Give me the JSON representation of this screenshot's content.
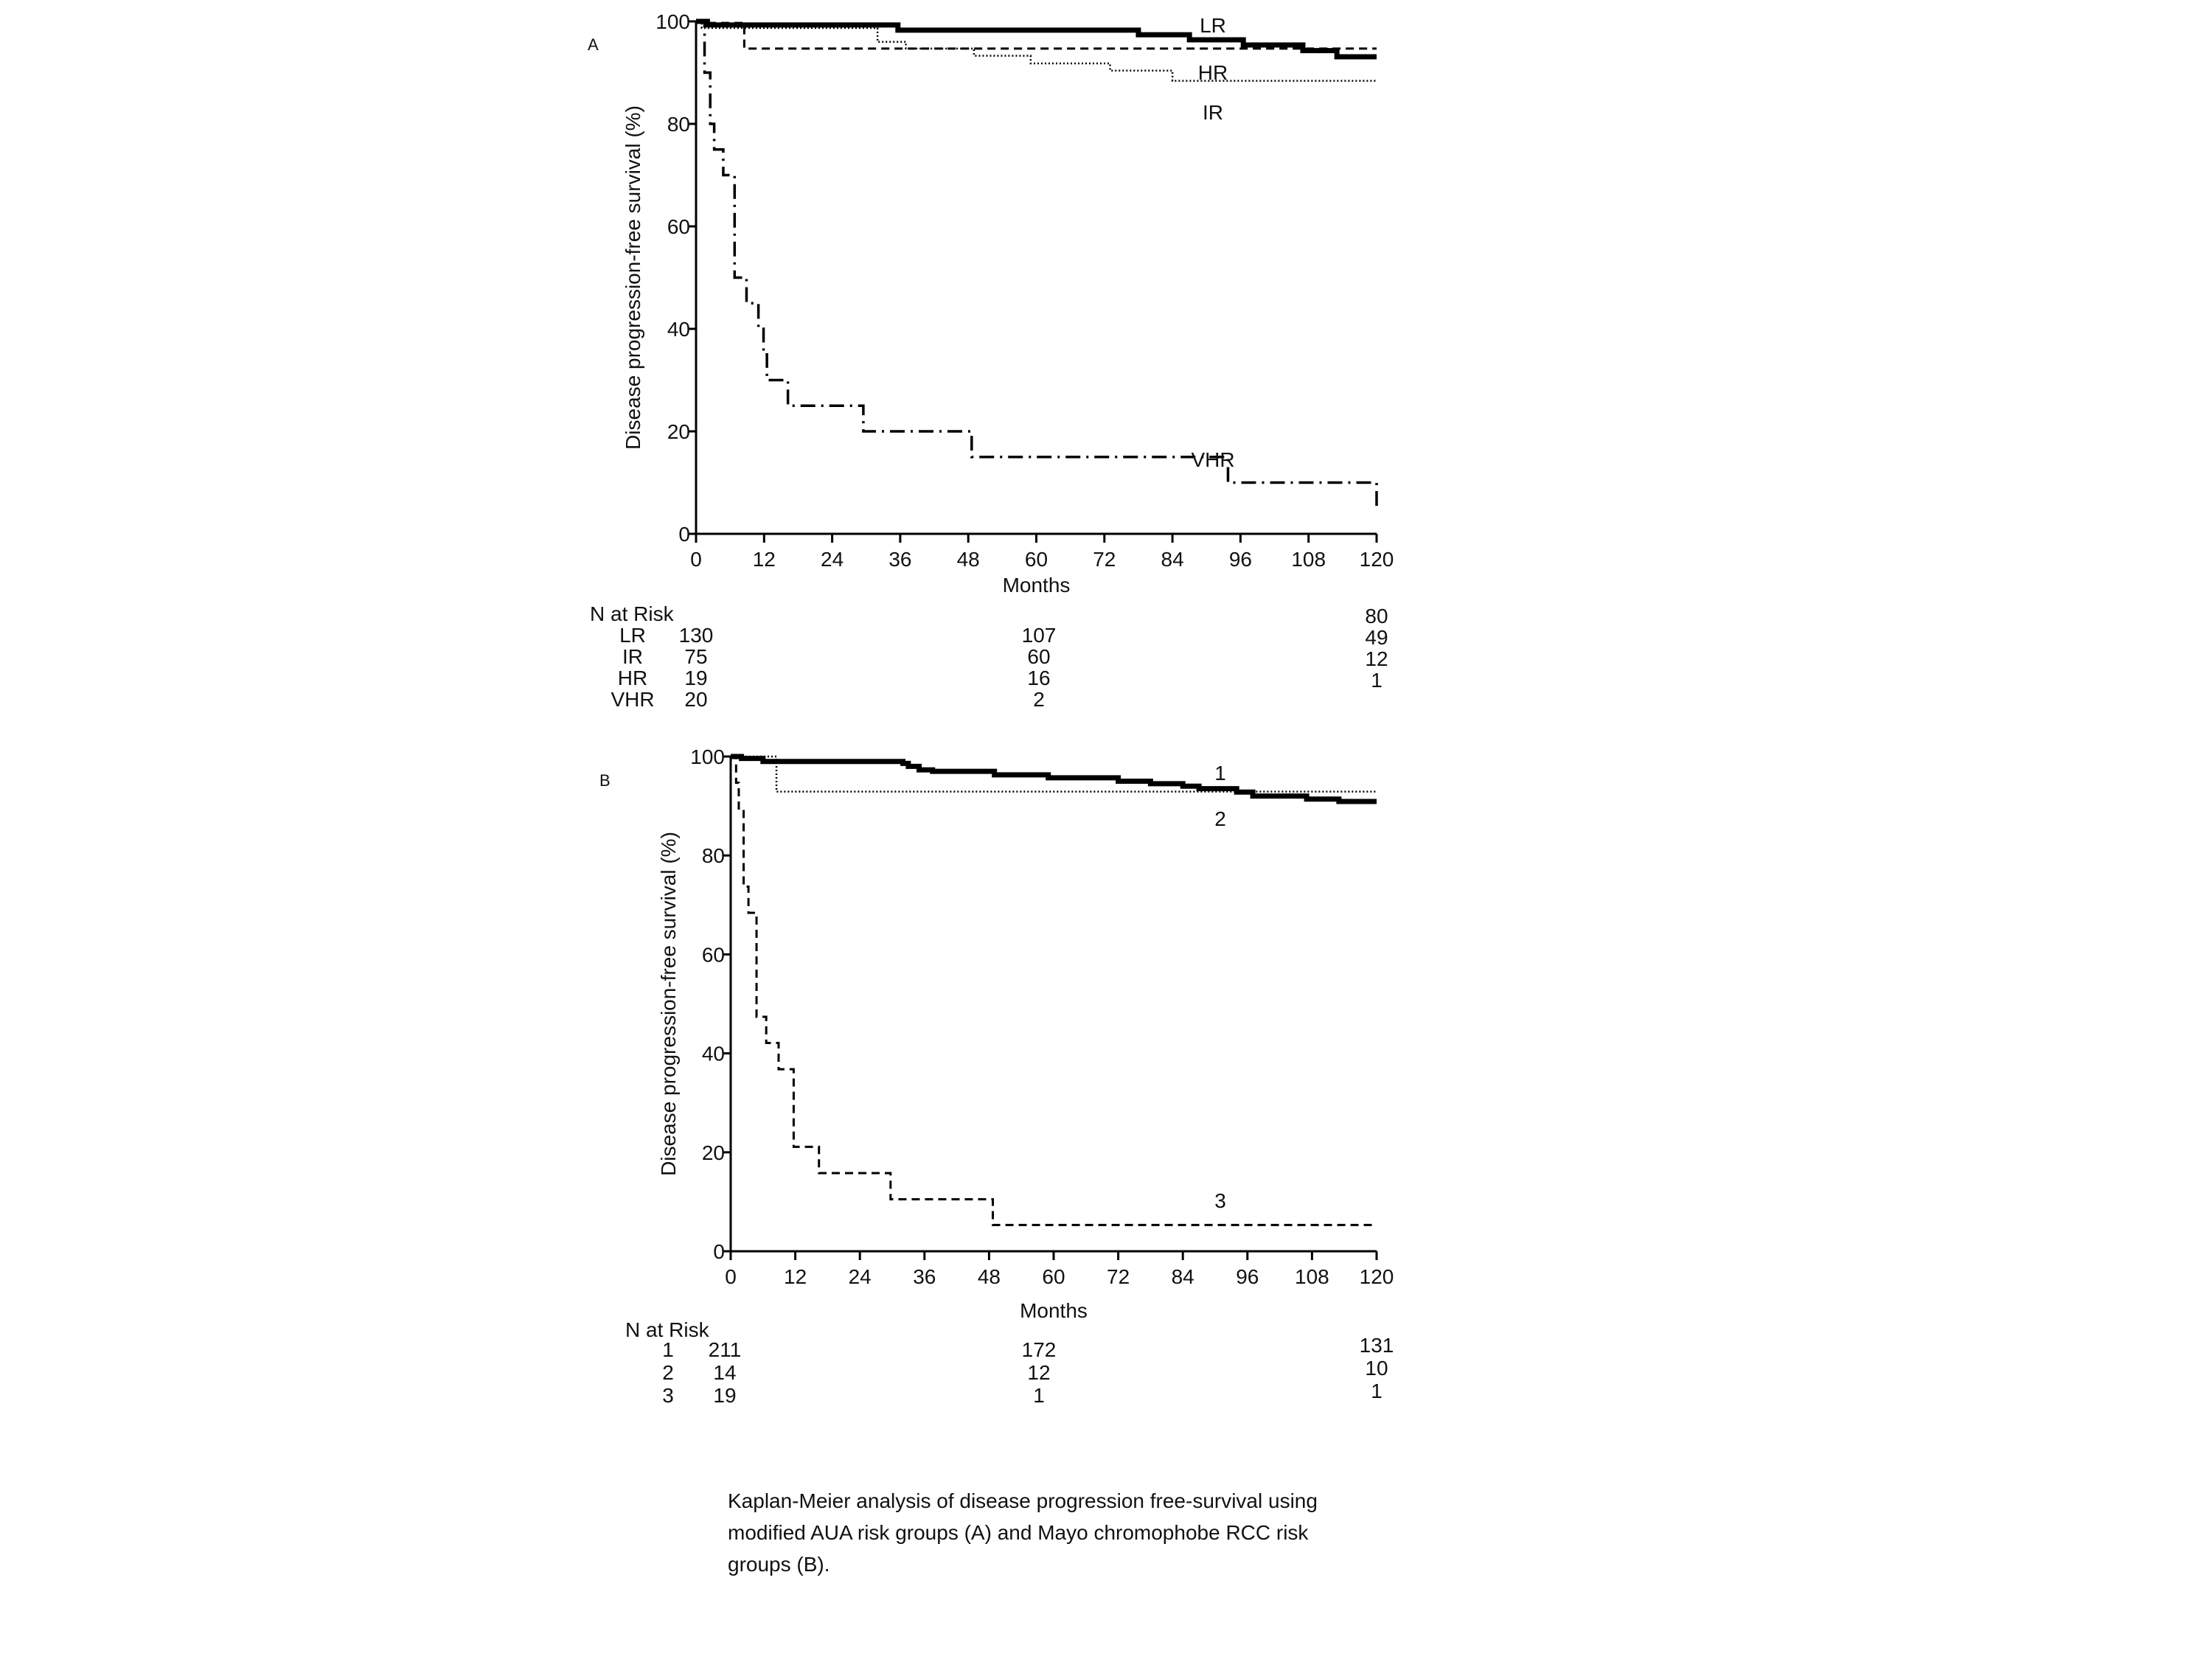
{
  "chart_data": [
    {
      "type": "line",
      "panel_label": "A",
      "title": "",
      "xlabel": "Months",
      "ylabel": "Disease progression-free survival (%)",
      "xlim": [
        0,
        120
      ],
      "ylim": [
        0,
        100
      ],
      "xticks": [
        "0",
        "12",
        "24",
        "36",
        "48",
        "60",
        "72",
        "84",
        "96",
        "108",
        "120"
      ],
      "yticks": [
        "0",
        "20",
        "40",
        "60",
        "80",
        "100"
      ],
      "grid": false,
      "series": [
        {
          "name": "LR",
          "style": "solid-thick",
          "x": [
            0,
            2,
            35.6,
            78,
            87,
            96.5,
            107,
            113,
            120
          ],
          "y": [
            100,
            99.3,
            98.3,
            97.4,
            96.4,
            95.4,
            94.3,
            93.1,
            93.1
          ]
        },
        {
          "name": "HR",
          "style": "dashed",
          "x": [
            0,
            1,
            8.5,
            120
          ],
          "y": [
            100,
            99.7,
            94.7,
            94.7
          ]
        },
        {
          "name": "IR",
          "style": "dotted",
          "x": [
            0,
            1,
            32,
            37,
            49,
            59,
            73,
            84,
            120
          ],
          "y": [
            100,
            98.7,
            96,
            94.7,
            93.3,
            91.8,
            90.4,
            88.4,
            88.4
          ]
        },
        {
          "name": "VHR",
          "style": "dash-dot",
          "x": [
            0,
            1.5,
            2.5,
            3.2,
            4.8,
            6.8,
            8.9,
            11,
            11.9,
            12.5,
            16.2,
            29.5,
            48.6,
            93.8,
            120
          ],
          "y": [
            100,
            90,
            80,
            75,
            70,
            50,
            45,
            40,
            35,
            30,
            25,
            20,
            15,
            10,
            5
          ]
        }
      ],
      "annotations": [
        "LR",
        "HR",
        "IR",
        "VHR"
      ],
      "risk_table": {
        "header": "N at Risk",
        "timepoints": [
          0,
          60,
          120
        ],
        "rows": [
          {
            "label": "LR",
            "values": [
              "130",
              "107",
              "80"
            ]
          },
          {
            "label": "IR",
            "values": [
              "75",
              "60",
              "49"
            ]
          },
          {
            "label": "HR",
            "values": [
              "19",
              "16",
              "12"
            ]
          },
          {
            "label": "VHR",
            "values": [
              "20",
              "2",
              "1"
            ]
          }
        ]
      }
    },
    {
      "type": "line",
      "panel_label": "B",
      "title": "",
      "xlabel": "Months",
      "ylabel": "Disease progression-free survival (%)",
      "xlim": [
        0,
        120
      ],
      "ylim": [
        0,
        100
      ],
      "xticks": [
        "0",
        "12",
        "24",
        "36",
        "48",
        "60",
        "72",
        "84",
        "96",
        "108",
        "120"
      ],
      "yticks": [
        "0",
        "20",
        "40",
        "60",
        "80",
        "100"
      ],
      "grid": false,
      "series": [
        {
          "name": "1",
          "style": "solid-thick",
          "x": [
            0,
            2,
            6,
            32,
            33,
            35,
            37.5,
            49,
            59,
            72,
            78,
            84,
            87,
            94,
            97,
            107,
            113,
            120
          ],
          "y": [
            100,
            99.6,
            99,
            98.6,
            98,
            97.3,
            97,
            96.3,
            95.7,
            95,
            94.5,
            94,
            93.5,
            92.8,
            92,
            91.4,
            90.9,
            90.9
          ]
        },
        {
          "name": "2",
          "style": "dotted",
          "x": [
            0,
            8.5,
            120
          ],
          "y": [
            100,
            92.9,
            92.9
          ]
        },
        {
          "name": "3",
          "style": "dashed",
          "x": [
            0,
            1,
            1.5,
            2.4,
            3.3,
            4.8,
            6.6,
            8.9,
            11.7,
            16.4,
            29.7,
            48.7,
            120
          ],
          "y": [
            100,
            94.7,
            89.5,
            73.7,
            68.4,
            47.4,
            42.1,
            36.8,
            21.1,
            15.8,
            10.5,
            5.3,
            5.3
          ]
        }
      ],
      "annotations": [
        "1",
        "2",
        "3"
      ],
      "risk_table": {
        "header": "N at Risk",
        "timepoints": [
          0,
          60,
          120
        ],
        "rows": [
          {
            "label": "1",
            "values": [
              "211",
              "172",
              "131"
            ]
          },
          {
            "label": "2",
            "values": [
              "14",
              "12",
              "10"
            ]
          },
          {
            "label": "3",
            "values": [
              "19",
              "1",
              "1"
            ]
          }
        ]
      }
    }
  ],
  "caption": {
    "lines": [
      "Kaplan-Meier analysis of disease progression free-survival using",
      "modified AUA risk groups (A) and Mayo chromophobe RCC risk",
      "groups (B)."
    ]
  }
}
